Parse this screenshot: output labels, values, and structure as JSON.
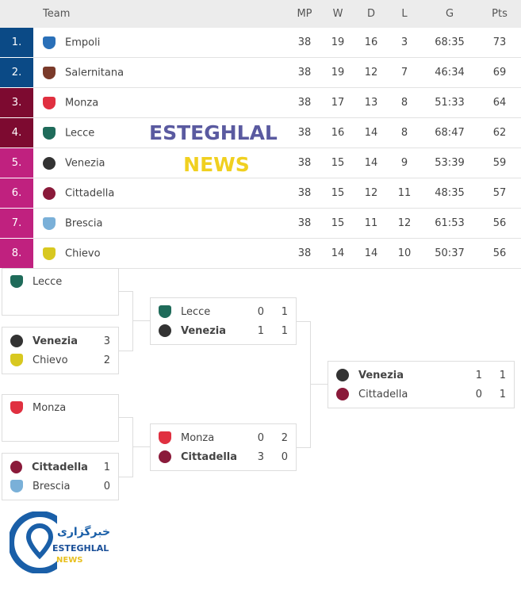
{
  "table": {
    "headers": [
      "Team",
      "MP",
      "W",
      "D",
      "L",
      "G",
      "Pts"
    ],
    "rows": [
      {
        "rank": "1.",
        "team": "Empoli",
        "crest": "c-empoli",
        "mp": "38",
        "w": "19",
        "d": "16",
        "l": "3",
        "g": "68:35",
        "pts": "73",
        "color": "#0b4a86"
      },
      {
        "rank": "2.",
        "team": "Salernitana",
        "crest": "c-salern",
        "mp": "38",
        "w": "19",
        "d": "12",
        "l": "7",
        "g": "46:34",
        "pts": "69",
        "color": "#0b4a86"
      },
      {
        "rank": "3.",
        "team": "Monza",
        "crest": "c-monza",
        "mp": "38",
        "w": "17",
        "d": "13",
        "l": "8",
        "g": "51:33",
        "pts": "64",
        "color": "#7d0a30"
      },
      {
        "rank": "4.",
        "team": "Lecce",
        "crest": "c-lecce",
        "mp": "38",
        "w": "16",
        "d": "14",
        "l": "8",
        "g": "68:47",
        "pts": "62",
        "color": "#7d0a30"
      },
      {
        "rank": "5.",
        "team": "Venezia",
        "crest": "c-venezia",
        "mp": "38",
        "w": "15",
        "d": "14",
        "l": "9",
        "g": "53:39",
        "pts": "59",
        "color": "#c0217f"
      },
      {
        "rank": "6.",
        "team": "Cittadella",
        "crest": "c-citta",
        "mp": "38",
        "w": "15",
        "d": "12",
        "l": "11",
        "g": "48:35",
        "pts": "57",
        "color": "#c0217f"
      },
      {
        "rank": "7.",
        "team": "Brescia",
        "crest": "c-brescia",
        "mp": "38",
        "w": "15",
        "d": "11",
        "l": "12",
        "g": "61:53",
        "pts": "56",
        "color": "#c0217f"
      },
      {
        "rank": "8.",
        "team": "Chievo",
        "crest": "c-chievo",
        "mp": "38",
        "w": "14",
        "d": "14",
        "l": "10",
        "g": "50:37",
        "pts": "56",
        "color": "#c0217f"
      }
    ]
  },
  "watermark": {
    "line1": "ESTEGHLAL",
    "line2": "NEWS"
  },
  "bracket": {
    "r1a": {
      "team": "Lecce"
    },
    "r1b": {
      "t1": "Venezia",
      "s1": "3",
      "t2": "Chievo",
      "s2": "2"
    },
    "r1c": {
      "team": "Monza"
    },
    "r1d": {
      "t1": "Cittadella",
      "s1": "1",
      "t2": "Brescia",
      "s2": "0"
    },
    "sf1": {
      "t1": "Lecce",
      "a1": "0",
      "b1": "1",
      "t2": "Venezia",
      "a2": "1",
      "b2": "1"
    },
    "sf2": {
      "t1": "Monza",
      "a1": "0",
      "b1": "2",
      "t2": "Cittadella",
      "a2": "3",
      "b2": "0"
    },
    "final": {
      "t1": "Venezia",
      "a1": "1",
      "b1": "1",
      "t2": "Cittadella",
      "a2": "0",
      "b2": "1"
    }
  },
  "logo": {
    "arabic": "خبرگزاری",
    "line1": "ESTEGHLAL",
    "line2": "NEWS"
  }
}
